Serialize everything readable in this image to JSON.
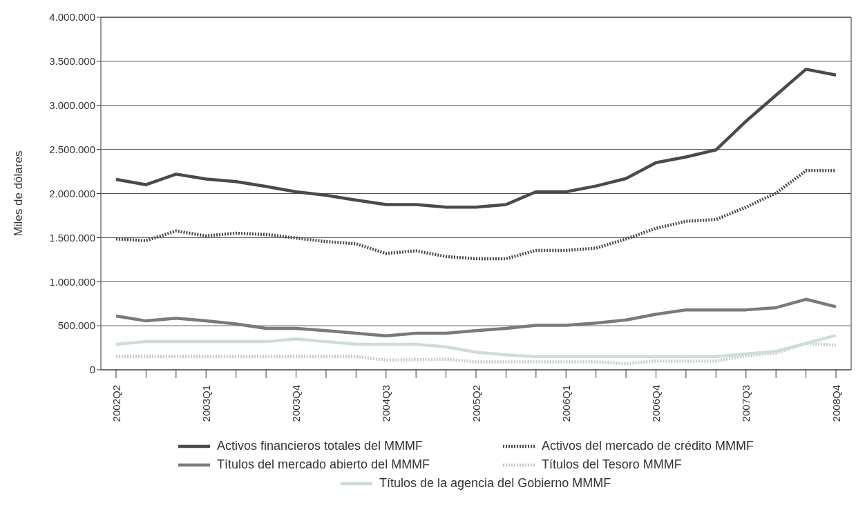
{
  "chart_data": {
    "type": "line",
    "ylabel": "Miles de dólares",
    "categories": [
      "2002Q2",
      null,
      null,
      "2003Q1",
      null,
      null,
      "2003Q4",
      null,
      null,
      "2004Q3",
      null,
      null,
      "2005Q2",
      null,
      null,
      "2006Q1",
      null,
      null,
      "2006Q4",
      null,
      null,
      "2007Q3",
      null,
      null,
      "2008Q4"
    ],
    "series": [
      {
        "name": "Activos financieros totales del MMMF",
        "color": "#4a4a4a",
        "line_style": "solid",
        "values": [
          2160000,
          2100000,
          2220000,
          2165000,
          2135000,
          2080000,
          2020000,
          1980000,
          1925000,
          1875000,
          1875000,
          1845000,
          1845000,
          1875000,
          2020000,
          2020000,
          2085000,
          2170000,
          2350000,
          2415000,
          2495000,
          2820000,
          3115000,
          3410000,
          3345000
        ]
      },
      {
        "name": "Activos del mercado de crédito MMMF",
        "color": "#4a4a4a",
        "line_style": "dotted",
        "values": [
          1485000,
          1465000,
          1575000,
          1520000,
          1550000,
          1535000,
          1495000,
          1455000,
          1430000,
          1320000,
          1350000,
          1285000,
          1260000,
          1260000,
          1355000,
          1355000,
          1380000,
          1485000,
          1605000,
          1685000,
          1705000,
          1845000,
          2005000,
          2260000,
          2260000
        ]
      },
      {
        "name": "Títulos del mercado abierto del MMMF",
        "color": "#7a7a7a",
        "line_style": "solid",
        "values": [
          610000,
          555000,
          585000,
          555000,
          520000,
          470000,
          470000,
          445000,
          415000,
          385000,
          415000,
          415000,
          445000,
          470000,
          505000,
          505000,
          530000,
          565000,
          630000,
          680000,
          680000,
          680000,
          705000,
          800000,
          715000
        ]
      },
      {
        "name": "Títulos del Tesoro MMMF",
        "color": "#c4c8c8",
        "line_style": "dotted",
        "values": [
          150000,
          150000,
          150000,
          150000,
          150000,
          150000,
          150000,
          150000,
          150000,
          110000,
          115000,
          120000,
          90000,
          90000,
          90000,
          90000,
          90000,
          70000,
          100000,
          100000,
          100000,
          160000,
          190000,
          300000,
          280000
        ]
      },
      {
        "name": "Títulos de la agencia del Gobierno MMMF",
        "color": "#d0dcdc",
        "line_style": "solid",
        "values": [
          290000,
          320000,
          320000,
          320000,
          320000,
          320000,
          350000,
          320000,
          290000,
          290000,
          290000,
          260000,
          200000,
          170000,
          150000,
          150000,
          150000,
          150000,
          150000,
          150000,
          150000,
          180000,
          210000,
          300000,
          390000
        ]
      }
    ],
    "ylim": [
      0,
      4000000
    ],
    "yticks": [
      {
        "value": 0,
        "label": "0"
      },
      {
        "value": 500000,
        "label": "500.000"
      },
      {
        "value": 1000000,
        "label": "1.000.000"
      },
      {
        "value": 1500000,
        "label": "1.500.000"
      },
      {
        "value": 2000000,
        "label": "2.000.000"
      },
      {
        "value": 2500000,
        "label": "2.500.000"
      },
      {
        "value": 3000000,
        "label": "3.000.000"
      },
      {
        "value": 3500000,
        "label": "3.500.000"
      },
      {
        "value": 4000000,
        "label": "4.000.000"
      }
    ],
    "grid": "y",
    "legend": "bottom",
    "marker": "none"
  }
}
